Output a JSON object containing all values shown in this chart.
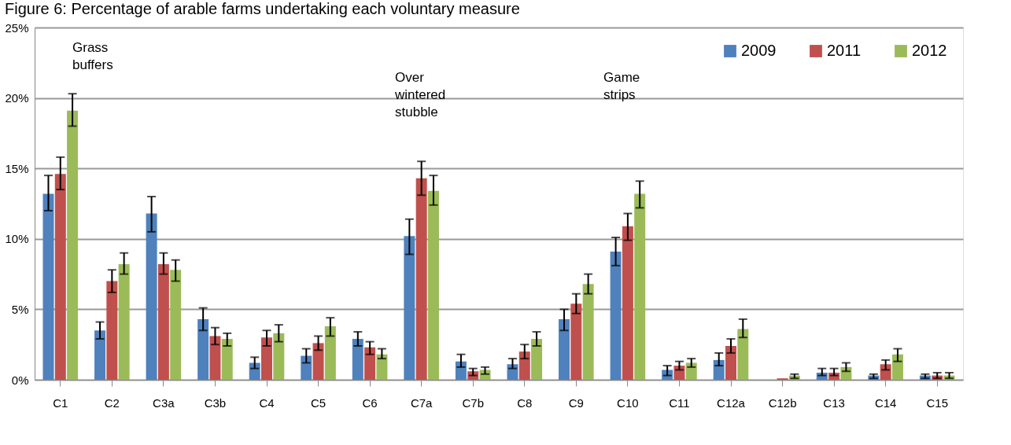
{
  "chart_data": {
    "type": "bar",
    "title": "Figure 6: Percentage of arable farms undertaking each voluntary measure",
    "categories": [
      "C1",
      "C2",
      "C3a",
      "C3b",
      "C4",
      "C5",
      "C6",
      "C7a",
      "C7b",
      "C8",
      "C9",
      "C10",
      "C11",
      "C12a",
      "C12b",
      "C13",
      "C14",
      "C15"
    ],
    "series": [
      {
        "name": "2009",
        "color": "#4f81bd",
        "values": [
          13.2,
          3.5,
          11.8,
          4.3,
          1.2,
          1.7,
          2.9,
          10.2,
          1.3,
          1.1,
          4.3,
          9.1,
          0.7,
          1.4,
          null,
          0.5,
          0.3,
          0.3
        ],
        "errors": [
          [
            12.0,
            14.5
          ],
          [
            2.9,
            4.1
          ],
          [
            10.5,
            13.0
          ],
          [
            3.5,
            5.1
          ],
          [
            0.8,
            1.6
          ],
          [
            1.2,
            2.2
          ],
          [
            2.4,
            3.4
          ],
          [
            8.9,
            11.4
          ],
          [
            0.9,
            1.8
          ],
          [
            0.8,
            1.5
          ],
          [
            3.5,
            5.0
          ],
          [
            8.1,
            10.1
          ],
          [
            0.3,
            1.0
          ],
          [
            1.0,
            1.9
          ],
          null,
          [
            0.3,
            0.8
          ],
          [
            0.1,
            0.4
          ],
          [
            0.1,
            0.4
          ]
        ]
      },
      {
        "name": "2011",
        "color": "#c0504d",
        "values": [
          14.6,
          7.0,
          8.2,
          3.1,
          3.0,
          2.6,
          2.3,
          14.3,
          0.6,
          2.0,
          5.4,
          10.9,
          1.0,
          2.4,
          0.1,
          0.5,
          1.1,
          0.3
        ],
        "errors": [
          [
            13.5,
            15.8
          ],
          [
            6.2,
            7.8
          ],
          [
            7.5,
            9.0
          ],
          [
            2.5,
            3.7
          ],
          [
            2.4,
            3.5
          ],
          [
            2.1,
            3.1
          ],
          [
            1.8,
            2.7
          ],
          [
            13.1,
            15.5
          ],
          [
            0.3,
            0.8
          ],
          [
            1.5,
            2.5
          ],
          [
            4.7,
            6.1
          ],
          [
            9.9,
            11.8
          ],
          [
            0.7,
            1.3
          ],
          [
            1.9,
            2.9
          ],
          null,
          [
            0.3,
            0.8
          ],
          [
            0.7,
            1.4
          ],
          [
            0.1,
            0.5
          ]
        ]
      },
      {
        "name": "2012",
        "color": "#9bbb59",
        "values": [
          19.1,
          8.2,
          7.8,
          2.9,
          3.3,
          3.8,
          1.8,
          13.4,
          0.7,
          2.9,
          6.8,
          13.2,
          1.2,
          3.6,
          0.3,
          0.9,
          1.8,
          0.3
        ],
        "errors": [
          [
            18.0,
            20.3
          ],
          [
            7.5,
            9.0
          ],
          [
            7.0,
            8.5
          ],
          [
            2.4,
            3.3
          ],
          [
            2.7,
            3.9
          ],
          [
            3.1,
            4.4
          ],
          [
            1.5,
            2.2
          ],
          [
            12.4,
            14.5
          ],
          [
            0.4,
            0.9
          ],
          [
            2.4,
            3.4
          ],
          [
            6.1,
            7.5
          ],
          [
            12.2,
            14.1
          ],
          [
            0.9,
            1.5
          ],
          [
            3.0,
            4.3
          ],
          [
            0.1,
            0.4
          ],
          [
            0.6,
            1.2
          ],
          [
            1.3,
            2.2
          ],
          [
            0.1,
            0.5
          ]
        ]
      }
    ],
    "ylim": [
      0,
      25
    ],
    "yticks": [
      {
        "value": 0,
        "label": "0%"
      },
      {
        "value": 5,
        "label": "5%"
      },
      {
        "value": 10,
        "label": "10%"
      },
      {
        "value": 15,
        "label": "15%"
      },
      {
        "value": 20,
        "label": "20%"
      },
      {
        "value": 25,
        "label": "25%"
      }
    ],
    "grid": "y",
    "legend": "top right",
    "annotations": [
      "Grass buffers",
      "Over wintered stubble",
      "Game strips"
    ]
  }
}
